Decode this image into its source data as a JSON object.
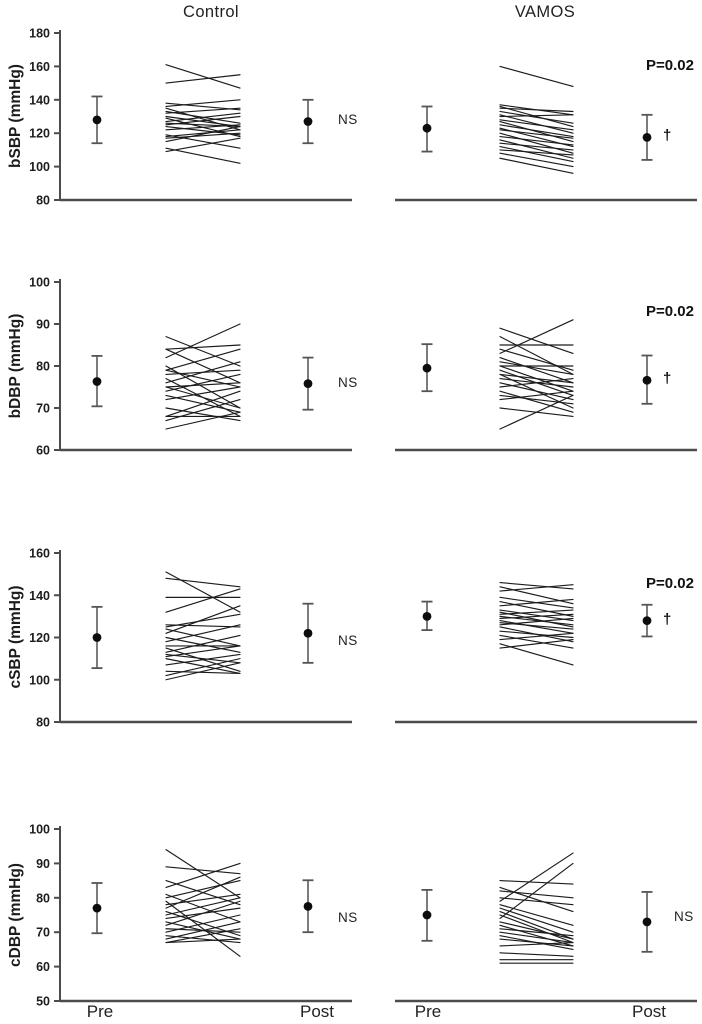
{
  "figure": {
    "column_titles": {
      "control": "Control",
      "vamos": "VAMOS"
    },
    "x_labels": {
      "pre": "Pre",
      "post": "Post"
    },
    "annotations": {
      "ns": "NS",
      "p_value": "P=0.02",
      "dagger": "†"
    },
    "colors": {
      "axis": "#4c4c4c",
      "tick_text": "#1d1d1d",
      "subject_line": "#1c1c1c",
      "error_bar": "#6e6e6e",
      "error_cap": "#555555",
      "mean_point": "#0d0d0d"
    }
  },
  "chart_data": [
    {
      "id": "bsbp-control",
      "type": "line",
      "subtype": "paired-individual-change",
      "group": "Control",
      "measure": "bSBP",
      "ylabel": "bSBP (mmHg)",
      "categories": [
        "Pre",
        "Post"
      ],
      "ylim": [
        80,
        180
      ],
      "yticks": [
        80,
        100,
        120,
        140,
        160,
        180
      ],
      "row": 0,
      "col": 0,
      "pre": {
        "mean": 128,
        "lo": 114,
        "hi": 142
      },
      "post": {
        "mean": 127,
        "lo": 114,
        "hi": 140
      },
      "significance": "NS",
      "subjects": [
        [
          161,
          147
        ],
        [
          150,
          155
        ],
        [
          138,
          134
        ],
        [
          136,
          140
        ],
        [
          135,
          122
        ],
        [
          133,
          126
        ],
        [
          132,
          135
        ],
        [
          130,
          124
        ],
        [
          129,
          118
        ],
        [
          127,
          132
        ],
        [
          126,
          124
        ],
        [
          125,
          130
        ],
        [
          124,
          119
        ],
        [
          122,
          125
        ],
        [
          119,
          111
        ],
        [
          118,
          122
        ],
        [
          117,
          120
        ],
        [
          115,
          124
        ],
        [
          111,
          102
        ],
        [
          109,
          117
        ]
      ]
    },
    {
      "id": "bsbp-vamos",
      "type": "line",
      "subtype": "paired-individual-change",
      "group": "VAMOS",
      "measure": "bSBP",
      "ylabel": "bSBP (mmHg)",
      "categories": [
        "Pre",
        "Post"
      ],
      "ylim": [
        80,
        180
      ],
      "yticks": [
        80,
        100,
        120,
        140,
        160,
        180
      ],
      "row": 0,
      "col": 1,
      "pre": {
        "mean": 123,
        "lo": 109,
        "hi": 136
      },
      "post": {
        "mean": 117.5,
        "lo": 104,
        "hi": 131
      },
      "significance": "P=0.02",
      "post_marker": "†",
      "subjects": [
        [
          160,
          148
        ],
        [
          137,
          131
        ],
        [
          136,
          124
        ],
        [
          135,
          133
        ],
        [
          133,
          126
        ],
        [
          131,
          120
        ],
        [
          130,
          131
        ],
        [
          128,
          122
        ],
        [
          127,
          115
        ],
        [
          125,
          118
        ],
        [
          123,
          112
        ],
        [
          122,
          117
        ],
        [
          120,
          108
        ],
        [
          118,
          113
        ],
        [
          116,
          105
        ],
        [
          114,
          110
        ],
        [
          112,
          103
        ],
        [
          110,
          107
        ],
        [
          108,
          100
        ],
        [
          105,
          96
        ]
      ]
    },
    {
      "id": "bdbp-control",
      "type": "line",
      "subtype": "paired-individual-change",
      "group": "Control",
      "measure": "bDBP",
      "ylabel": "bDBP (mmHg)",
      "categories": [
        "Pre",
        "Post"
      ],
      "ylim": [
        60,
        100
      ],
      "yticks": [
        60,
        70,
        80,
        90,
        100
      ],
      "row": 1,
      "col": 0,
      "pre": {
        "mean": 76.3,
        "lo": 70.4,
        "hi": 82.4
      },
      "post": {
        "mean": 75.8,
        "lo": 69.6,
        "hi": 82
      },
      "significance": "NS",
      "subjects": [
        [
          87,
          80
        ],
        [
          84,
          85
        ],
        [
          84,
          76
        ],
        [
          82,
          90
        ],
        [
          80,
          70
        ],
        [
          79,
          84
        ],
        [
          79,
          75
        ],
        [
          78,
          79
        ],
        [
          77,
          68
        ],
        [
          76,
          81
        ],
        [
          75,
          76
        ],
        [
          75,
          70
        ],
        [
          74,
          78
        ],
        [
          73,
          69
        ],
        [
          72,
          75
        ],
        [
          70,
          67
        ],
        [
          68,
          74
        ],
        [
          68,
          68
        ],
        [
          67,
          72
        ],
        [
          65,
          69
        ]
      ]
    },
    {
      "id": "bdbp-vamos",
      "type": "line",
      "subtype": "paired-individual-change",
      "group": "VAMOS",
      "measure": "bDBP",
      "ylabel": "bDBP (mmHg)",
      "categories": [
        "Pre",
        "Post"
      ],
      "ylim": [
        60,
        100
      ],
      "yticks": [
        60,
        70,
        80,
        90,
        100
      ],
      "row": 1,
      "col": 1,
      "pre": {
        "mean": 79.5,
        "lo": 74,
        "hi": 85.2
      },
      "post": {
        "mean": 76.6,
        "lo": 71,
        "hi": 82.5
      },
      "significance": "P=0.02",
      "post_marker": "†",
      "subjects": [
        [
          89,
          83
        ],
        [
          87,
          78
        ],
        [
          85,
          85
        ],
        [
          84,
          79
        ],
        [
          83,
          91
        ],
        [
          82,
          76
        ],
        [
          81,
          78
        ],
        [
          80,
          74
        ],
        [
          80,
          80
        ],
        [
          79,
          73
        ],
        [
          78,
          76
        ],
        [
          78,
          70
        ],
        [
          77,
          75
        ],
        [
          76,
          72
        ],
        [
          75,
          77
        ],
        [
          74,
          69
        ],
        [
          73,
          71
        ],
        [
          72,
          74
        ],
        [
          70,
          68
        ],
        [
          65,
          73
        ]
      ]
    },
    {
      "id": "csbp-control",
      "type": "line",
      "subtype": "paired-individual-change",
      "group": "Control",
      "measure": "cSBP",
      "ylabel": "cSBP (mmHg)",
      "categories": [
        "Pre",
        "Post"
      ],
      "ylim": [
        80,
        160
      ],
      "yticks": [
        80,
        100,
        120,
        140,
        160
      ],
      "row": 2,
      "col": 0,
      "pre": {
        "mean": 120,
        "lo": 105.5,
        "hi": 134.5
      },
      "post": {
        "mean": 122,
        "lo": 108,
        "hi": 136
      },
      "significance": "NS",
      "subjects": [
        [
          151,
          132
        ],
        [
          148,
          144
        ],
        [
          139,
          139
        ],
        [
          132,
          143
        ],
        [
          126,
          125
        ],
        [
          125,
          131
        ],
        [
          124,
          116
        ],
        [
          122,
          135
        ],
        [
          120,
          113
        ],
        [
          118,
          126
        ],
        [
          116,
          116
        ],
        [
          115,
          104
        ],
        [
          113,
          121
        ],
        [
          112,
          108
        ],
        [
          111,
          116
        ],
        [
          110,
          103
        ],
        [
          107,
          112
        ],
        [
          104,
          103
        ],
        [
          102,
          110
        ],
        [
          100,
          108
        ]
      ]
    },
    {
      "id": "csbp-vamos",
      "type": "line",
      "subtype": "paired-individual-change",
      "group": "VAMOS",
      "measure": "cSBP",
      "ylabel": "cSBP (mmHg)",
      "categories": [
        "Pre",
        "Post"
      ],
      "ylim": [
        80,
        160
      ],
      "yticks": [
        80,
        100,
        120,
        140,
        160
      ],
      "row": 2,
      "col": 1,
      "pre": {
        "mean": 130,
        "lo": 123.5,
        "hi": 137
      },
      "post": {
        "mean": 128,
        "lo": 120.5,
        "hi": 135.5
      },
      "significance": "P=0.02",
      "post_marker": "†",
      "subjects": [
        [
          146,
          143
        ],
        [
          144,
          136
        ],
        [
          142,
          145
        ],
        [
          139,
          134
        ],
        [
          137,
          130
        ],
        [
          135,
          138
        ],
        [
          133,
          128
        ],
        [
          132,
          125
        ],
        [
          131,
          133
        ],
        [
          130,
          126
        ],
        [
          129,
          131
        ],
        [
          128,
          122
        ],
        [
          127,
          124
        ],
        [
          126,
          129
        ],
        [
          125,
          118
        ],
        [
          123,
          120
        ],
        [
          121,
          115
        ],
        [
          119,
          122
        ],
        [
          117,
          107
        ],
        [
          115,
          119
        ]
      ]
    },
    {
      "id": "cdbp-control",
      "type": "line",
      "subtype": "paired-individual-change",
      "group": "Control",
      "measure": "cDBP",
      "ylabel": "cDBP (mmHg)",
      "categories": [
        "Pre",
        "Post"
      ],
      "ylim": [
        50,
        100
      ],
      "yticks": [
        50,
        60,
        70,
        80,
        90,
        100
      ],
      "row": 3,
      "col": 0,
      "pre": {
        "mean": 77,
        "lo": 69.7,
        "hi": 84.3
      },
      "post": {
        "mean": 77.5,
        "lo": 70,
        "hi": 85.1
      },
      "significance": "NS",
      "subjects": [
        [
          94,
          80
        ],
        [
          89,
          87
        ],
        [
          85,
          78
        ],
        [
          83,
          90
        ],
        [
          81,
          73
        ],
        [
          80,
          85
        ],
        [
          79,
          63
        ],
        [
          78,
          81
        ],
        [
          77,
          86
        ],
        [
          76,
          69
        ],
        [
          75,
          80
        ],
        [
          74,
          77
        ],
        [
          73,
          68
        ],
        [
          72,
          79
        ],
        [
          71,
          70
        ],
        [
          70,
          75
        ],
        [
          69,
          67
        ],
        [
          68,
          73
        ],
        [
          67,
          68
        ],
        [
          67,
          71
        ]
      ]
    },
    {
      "id": "cdbp-vamos",
      "type": "line",
      "subtype": "paired-individual-change",
      "group": "VAMOS",
      "measure": "cDBP",
      "ylabel": "cDBP (mmHg)",
      "categories": [
        "Pre",
        "Post"
      ],
      "ylim": [
        50,
        100
      ],
      "yticks": [
        50,
        60,
        70,
        80,
        90,
        100
      ],
      "row": 3,
      "col": 1,
      "pre": {
        "mean": 75,
        "lo": 67.5,
        "hi": 82.3
      },
      "post": {
        "mean": 73,
        "lo": 64.3,
        "hi": 81.7
      },
      "significance": "NS",
      "subjects": [
        [
          85,
          84
        ],
        [
          83,
          76
        ],
        [
          82,
          80
        ],
        [
          80,
          78
        ],
        [
          79,
          93
        ],
        [
          78,
          72
        ],
        [
          77,
          70
        ],
        [
          76,
          68
        ],
        [
          75,
          67
        ],
        [
          74,
          90
        ],
        [
          73,
          68
        ],
        [
          72,
          66
        ],
        [
          71,
          69
        ],
        [
          70,
          67
        ],
        [
          69,
          65
        ],
        [
          68,
          66
        ],
        [
          66,
          67
        ],
        [
          64,
          63
        ],
        [
          62,
          62
        ],
        [
          61,
          61
        ]
      ]
    }
  ]
}
